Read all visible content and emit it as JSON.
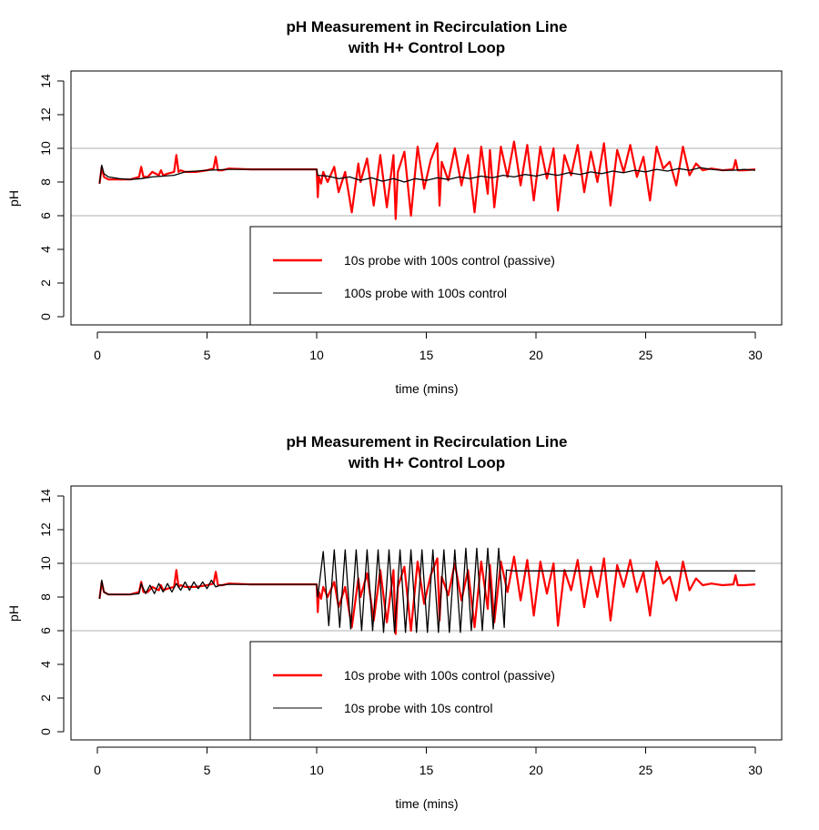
{
  "chart_data": [
    {
      "type": "line",
      "title": "pH Measurement in Recirculation Line",
      "subtitle": "with H+ Control Loop",
      "xlabel": "time (mins)",
      "ylabel": "pH",
      "xlim": [
        0,
        30
      ],
      "ylim": [
        0,
        14
      ],
      "x_ticks": [
        "0",
        "5",
        "10",
        "15",
        "20",
        "25",
        "30"
      ],
      "y_ticks": [
        "0",
        "2",
        "4",
        "6",
        "8",
        "10",
        "12",
        "14"
      ],
      "reference_lines": [
        6,
        10
      ],
      "legend_position": "bottom-right",
      "series": [
        {
          "name": "10s probe with 100s control (passive)",
          "color": "#ff0000",
          "x": [
            0.1,
            0.2,
            0.3,
            0.5,
            1,
            1.5,
            1.9,
            2.0,
            2.1,
            2.3,
            2.5,
            2.8,
            2.9,
            3.0,
            3.2,
            3.5,
            3.6,
            3.7,
            3.8,
            4.0,
            4.5,
            5.0,
            5.3,
            5.4,
            5.5,
            5.7,
            6,
            7,
            8,
            9,
            10,
            10.05,
            10.1,
            10.2,
            10.3,
            10.5,
            10.8,
            11.0,
            11.3,
            11.6,
            11.9,
            12.0,
            12.3,
            12.6,
            12.9,
            13.2,
            13.5,
            13.6,
            13.7,
            14.0,
            14.3,
            14.6,
            14.9,
            15.2,
            15.5,
            15.6,
            15.7,
            16.0,
            16.3,
            16.6,
            16.9,
            17.2,
            17.5,
            17.8,
            17.9,
            18.1,
            18.4,
            18.7,
            19.0,
            19.3,
            19.6,
            19.9,
            20.2,
            20.5,
            20.8,
            21.0,
            21.3,
            21.6,
            21.9,
            22.2,
            22.5,
            22.8,
            23.1,
            23.4,
            23.7,
            24.0,
            24.3,
            24.6,
            24.9,
            25.2,
            25.5,
            25.8,
            26.1,
            26.4,
            26.7,
            27.0,
            27.3,
            27.6,
            28.0,
            28.5,
            29.0,
            29.1,
            29.2,
            29.5,
            30
          ],
          "y": [
            7.9,
            8.9,
            8.3,
            8.15,
            8.15,
            8.15,
            8.3,
            8.9,
            8.3,
            8.3,
            8.6,
            8.4,
            8.7,
            8.4,
            8.5,
            8.6,
            9.6,
            8.6,
            8.7,
            8.6,
            8.6,
            8.7,
            8.8,
            9.5,
            8.7,
            8.7,
            8.8,
            8.75,
            8.75,
            8.75,
            8.75,
            7.1,
            8.3,
            7.9,
            8.6,
            8.0,
            8.9,
            7.4,
            8.6,
            6.2,
            9.1,
            8.0,
            9.4,
            6.6,
            9.6,
            6.5,
            9.6,
            5.8,
            8.6,
            9.8,
            6.0,
            10.1,
            7.6,
            9.3,
            10.3,
            6.6,
            9.2,
            8.1,
            10.0,
            7.8,
            9.6,
            6.2,
            10.1,
            7.3,
            9.9,
            6.5,
            10.1,
            8.3,
            10.4,
            7.8,
            10.2,
            6.9,
            10.1,
            8.2,
            10.0,
            6.3,
            9.6,
            8.4,
            10.2,
            7.4,
            9.8,
            8.0,
            10.3,
            6.6,
            9.9,
            8.6,
            10.2,
            8.3,
            9.5,
            6.9,
            10.1,
            8.8,
            9.2,
            7.8,
            10.1,
            8.4,
            9.1,
            8.7,
            8.8,
            8.7,
            8.75,
            9.3,
            8.7,
            8.7,
            8.75
          ]
        },
        {
          "name": "100s probe with 100s control",
          "color": "#000000",
          "x": [
            0.1,
            0.2,
            0.3,
            0.5,
            1,
            1.5,
            2,
            2.5,
            3,
            3.5,
            4,
            4.5,
            5,
            6,
            7,
            8,
            9,
            10,
            10.05,
            10.5,
            11,
            11.5,
            12,
            12.5,
            13,
            13.5,
            14,
            14.5,
            15,
            15.5,
            16,
            16.5,
            17,
            17.5,
            18,
            18.5,
            19,
            19.5,
            20,
            20.5,
            21,
            21.5,
            22,
            22.5,
            23,
            23.5,
            24,
            24.5,
            25,
            25.5,
            26,
            26.5,
            27,
            27.5,
            28,
            28.5,
            29,
            29.5,
            30
          ],
          "y": [
            7.9,
            9.0,
            8.5,
            8.3,
            8.2,
            8.15,
            8.2,
            8.3,
            8.35,
            8.4,
            8.6,
            8.65,
            8.7,
            8.75,
            8.75,
            8.75,
            8.75,
            8.75,
            8.4,
            8.35,
            8.2,
            8.3,
            8.1,
            8.25,
            8.05,
            8.2,
            8.0,
            8.2,
            8.1,
            8.25,
            8.15,
            8.3,
            8.2,
            8.35,
            8.25,
            8.4,
            8.3,
            8.45,
            8.35,
            8.5,
            8.4,
            8.55,
            8.45,
            8.6,
            8.5,
            8.65,
            8.55,
            8.7,
            8.6,
            8.75,
            8.65,
            8.8,
            8.7,
            8.85,
            8.75,
            8.7,
            8.7,
            8.75,
            8.7
          ]
        }
      ]
    },
    {
      "type": "line",
      "title": "pH Measurement in Recirculation Line",
      "subtitle": "with H+ Control Loop",
      "xlabel": "time (mins)",
      "ylabel": "pH",
      "xlim": [
        0,
        30
      ],
      "ylim": [
        0,
        14
      ],
      "x_ticks": [
        "0",
        "5",
        "10",
        "15",
        "20",
        "25",
        "30"
      ],
      "y_ticks": [
        "0",
        "2",
        "4",
        "6",
        "8",
        "10",
        "12",
        "14"
      ],
      "reference_lines": [
        6,
        10
      ],
      "legend_position": "bottom-right",
      "series": [
        {
          "name": "10s probe with 100s control (passive)",
          "color": "#ff0000",
          "x": [
            0.1,
            0.2,
            0.3,
            0.5,
            1,
            1.5,
            1.9,
            2.0,
            2.1,
            2.3,
            2.5,
            2.8,
            2.9,
            3.0,
            3.2,
            3.5,
            3.6,
            3.7,
            3.8,
            4.0,
            4.5,
            5.0,
            5.3,
            5.4,
            5.5,
            5.7,
            6,
            7,
            8,
            9,
            10,
            10.05,
            10.1,
            10.2,
            10.3,
            10.5,
            10.8,
            11.0,
            11.3,
            11.6,
            11.9,
            12.0,
            12.3,
            12.6,
            12.9,
            13.2,
            13.5,
            13.6,
            13.7,
            14.0,
            14.3,
            14.6,
            14.9,
            15.2,
            15.5,
            15.6,
            15.7,
            16.0,
            16.3,
            16.6,
            16.9,
            17.2,
            17.5,
            17.8,
            17.9,
            18.1,
            18.4,
            18.7,
            19.0,
            19.3,
            19.6,
            19.9,
            20.2,
            20.5,
            20.8,
            21.0,
            21.3,
            21.6,
            21.9,
            22.2,
            22.5,
            22.8,
            23.1,
            23.4,
            23.7,
            24.0,
            24.3,
            24.6,
            24.9,
            25.2,
            25.5,
            25.8,
            26.1,
            26.4,
            26.7,
            27.0,
            27.3,
            27.6,
            28.0,
            28.5,
            29.0,
            29.1,
            29.2,
            29.5,
            30
          ],
          "y": [
            7.9,
            8.9,
            8.3,
            8.15,
            8.15,
            8.15,
            8.3,
            8.9,
            8.3,
            8.3,
            8.6,
            8.4,
            8.7,
            8.4,
            8.5,
            8.6,
            9.6,
            8.6,
            8.7,
            8.6,
            8.6,
            8.7,
            8.8,
            9.5,
            8.7,
            8.7,
            8.8,
            8.75,
            8.75,
            8.75,
            8.75,
            7.1,
            8.3,
            7.9,
            8.6,
            8.0,
            8.9,
            7.4,
            8.6,
            6.2,
            9.1,
            8.0,
            9.4,
            6.6,
            9.6,
            6.5,
            9.6,
            5.8,
            8.6,
            9.8,
            6.0,
            10.1,
            7.6,
            9.3,
            10.3,
            6.6,
            9.2,
            8.1,
            10.0,
            7.8,
            9.6,
            6.2,
            10.1,
            7.3,
            9.9,
            6.5,
            10.1,
            8.3,
            10.4,
            7.8,
            10.2,
            6.9,
            10.1,
            8.2,
            10.0,
            6.3,
            9.6,
            8.4,
            10.2,
            7.4,
            9.8,
            8.0,
            10.3,
            6.6,
            9.9,
            8.6,
            10.2,
            8.3,
            9.5,
            6.9,
            10.1,
            8.8,
            9.2,
            7.8,
            10.1,
            8.4,
            9.1,
            8.7,
            8.8,
            8.7,
            8.75,
            9.3,
            8.7,
            8.7,
            8.75
          ]
        },
        {
          "name": "10s probe with 10s control",
          "color": "#000000",
          "x": [
            0.1,
            0.2,
            0.3,
            0.5,
            1,
            1.5,
            1.9,
            2.0,
            2.2,
            2.4,
            2.6,
            2.8,
            3.0,
            3.2,
            3.4,
            3.6,
            3.8,
            4.0,
            4.2,
            4.4,
            4.6,
            4.8,
            5.0,
            5.2,
            5.4,
            5.6,
            6,
            7,
            8,
            9,
            10,
            10.05,
            10.3,
            10.55,
            10.8,
            11.05,
            11.3,
            11.55,
            11.8,
            12.05,
            12.3,
            12.55,
            12.8,
            13.05,
            13.3,
            13.55,
            13.8,
            14.05,
            14.3,
            14.55,
            14.8,
            15.05,
            15.3,
            15.55,
            15.8,
            16.05,
            16.3,
            16.55,
            16.8,
            17.05,
            17.3,
            17.55,
            17.8,
            18.05,
            18.3,
            18.55,
            18.65,
            19,
            20,
            25,
            30
          ],
          "y": [
            7.9,
            9.0,
            8.3,
            8.15,
            8.15,
            8.15,
            8.2,
            8.8,
            8.2,
            8.7,
            8.2,
            8.8,
            8.3,
            8.8,
            8.3,
            8.8,
            8.4,
            8.9,
            8.4,
            8.9,
            8.5,
            8.9,
            8.5,
            9.0,
            8.6,
            8.7,
            8.75,
            8.75,
            8.75,
            8.75,
            8.75,
            8.0,
            10.7,
            6.3,
            10.8,
            6.2,
            10.8,
            6.1,
            10.8,
            6.0,
            10.8,
            6.0,
            10.8,
            5.9,
            10.8,
            5.9,
            10.8,
            5.9,
            10.8,
            5.9,
            10.8,
            5.9,
            10.8,
            5.9,
            10.8,
            5.9,
            10.8,
            5.9,
            10.9,
            6.0,
            10.9,
            6.0,
            10.9,
            6.1,
            10.9,
            6.2,
            9.6,
            9.55,
            9.55,
            9.55,
            9.55
          ]
        }
      ]
    }
  ]
}
